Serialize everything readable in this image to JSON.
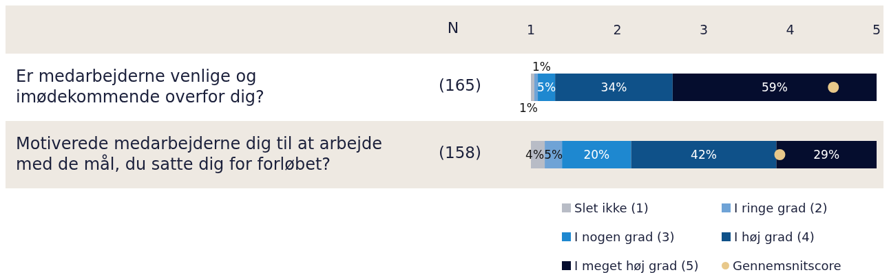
{
  "chart_data": {
    "type": "bar",
    "orientation": "horizontal",
    "stacked": true,
    "categories": [
      "Er medarbejderne venlige og imødekommende overfor dig?",
      "Motiverede medarbejderne dig til at arbejde med de mål, du satte dig for forløbet?"
    ],
    "y2label": "N",
    "y2_categories": [
      "(165)",
      "(158)"
    ],
    "xlim": [
      0,
      100
    ],
    "x2lim": [
      1,
      5
    ],
    "x2ticks": [
      1,
      2,
      3,
      4,
      5
    ],
    "series": [
      {
        "name": "Slet ikke (1)",
        "color": "#b8bcc6",
        "values": [
          1,
          4
        ],
        "value_labels": [
          "1%",
          "4%"
        ]
      },
      {
        "name": "I ringe grad (2)",
        "color": "#6fa3d6",
        "values": [
          1,
          5
        ],
        "value_labels": [
          "1%",
          "5%"
        ]
      },
      {
        "name": "I nogen grad (3)",
        "color": "#1e88d0",
        "values": [
          5,
          20
        ],
        "value_labels": [
          "5%",
          "20%"
        ]
      },
      {
        "name": "I høj grad (4)",
        "color": "#0f5189",
        "values": [
          34,
          42
        ],
        "value_labels": [
          "34%",
          "42%"
        ]
      },
      {
        "name": "I meget høj grad (5)",
        "color": "#050d2e",
        "values": [
          59,
          29
        ],
        "value_labels": [
          "59%",
          "29%"
        ]
      },
      {
        "name": "Gennemsnitscore",
        "type": "scatter",
        "axis": "x2",
        "color": "#e8c88a",
        "values": [
          4.5,
          3.88
        ]
      }
    ],
    "legend": "bottom right"
  }
}
